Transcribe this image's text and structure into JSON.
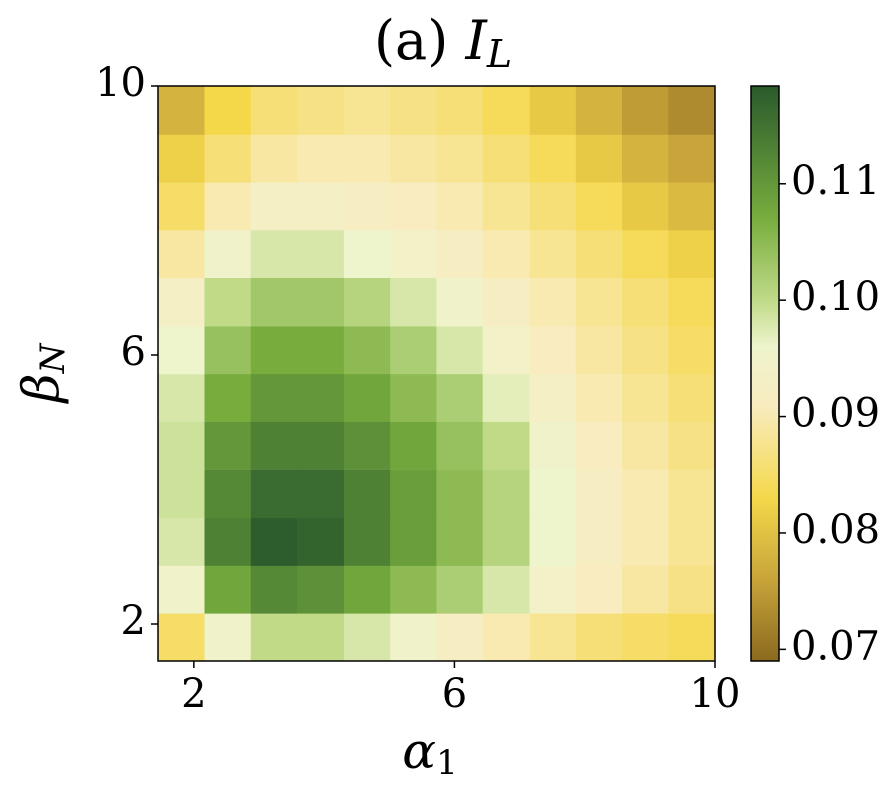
{
  "chart_data": {
    "type": "heatmap",
    "title": {
      "text": "(a)",
      "symbol": "I",
      "subscript": "L"
    },
    "xlabel": {
      "symbol": "α",
      "subscript": "1"
    },
    "ylabel": {
      "symbol": "β",
      "subscript": "N"
    },
    "x": [
      1.81,
      2.52,
      3.23,
      3.94,
      4.66,
      5.37,
      6.08,
      6.79,
      7.51,
      8.22,
      8.93,
      9.64
    ],
    "y": [
      1.81,
      2.52,
      3.23,
      3.94,
      4.66,
      5.37,
      6.08,
      6.79,
      7.51,
      8.22,
      8.93,
      9.64
    ],
    "z": [
      [
        0.085,
        0.095,
        0.1,
        0.1,
        0.098,
        0.095,
        0.092,
        0.09,
        0.088,
        0.086,
        0.085,
        0.084
      ],
      [
        0.095,
        0.108,
        0.112,
        0.111,
        0.108,
        0.105,
        0.102,
        0.098,
        0.094,
        0.091,
        0.089,
        0.087
      ],
      [
        0.098,
        0.113,
        0.118,
        0.117,
        0.113,
        0.109,
        0.105,
        0.101,
        0.096,
        0.092,
        0.09,
        0.088
      ],
      [
        0.099,
        0.112,
        0.116,
        0.116,
        0.113,
        0.109,
        0.105,
        0.101,
        0.096,
        0.092,
        0.09,
        0.088
      ],
      [
        0.099,
        0.11,
        0.113,
        0.113,
        0.111,
        0.108,
        0.104,
        0.1,
        0.095,
        0.091,
        0.089,
        0.087
      ],
      [
        0.098,
        0.107,
        0.11,
        0.11,
        0.108,
        0.105,
        0.102,
        0.097,
        0.093,
        0.09,
        0.088,
        0.086
      ],
      [
        0.096,
        0.104,
        0.107,
        0.107,
        0.105,
        0.102,
        0.098,
        0.094,
        0.091,
        0.089,
        0.087,
        0.085
      ],
      [
        0.093,
        0.1,
        0.103,
        0.103,
        0.101,
        0.098,
        0.095,
        0.092,
        0.09,
        0.088,
        0.086,
        0.084
      ],
      [
        0.089,
        0.095,
        0.098,
        0.098,
        0.096,
        0.094,
        0.092,
        0.09,
        0.088,
        0.086,
        0.084,
        0.082
      ],
      [
        0.085,
        0.09,
        0.093,
        0.093,
        0.092,
        0.091,
        0.09,
        0.088,
        0.086,
        0.084,
        0.081,
        0.079
      ],
      [
        0.082,
        0.086,
        0.089,
        0.09,
        0.09,
        0.089,
        0.088,
        0.086,
        0.084,
        0.081,
        0.078,
        0.076
      ],
      [
        0.078,
        0.083,
        0.086,
        0.087,
        0.088,
        0.087,
        0.086,
        0.084,
        0.081,
        0.078,
        0.075,
        0.073
      ]
    ],
    "xlim": [
      1.45,
      10
    ],
    "ylim": [
      1.45,
      10
    ],
    "xticks": [
      2,
      6,
      10
    ],
    "yticks": [
      2,
      6,
      10
    ],
    "clim": [
      0.069,
      0.1184
    ],
    "cticks": [
      0.07,
      0.08,
      0.09,
      {
        "value": 0.1,
        "label": "0.10"
      },
      0.11
    ],
    "colormap": [
      [
        0.069,
        "#8a6a1e"
      ],
      [
        0.076,
        "#c8a43a"
      ],
      [
        0.083,
        "#f4d84a"
      ],
      [
        0.091,
        "#f8ecc0"
      ],
      [
        0.096,
        "#eef4cc"
      ],
      [
        0.1,
        "#c0da88"
      ],
      [
        0.107,
        "#78ad3e"
      ],
      [
        0.1184,
        "#2a5a2c"
      ]
    ]
  }
}
